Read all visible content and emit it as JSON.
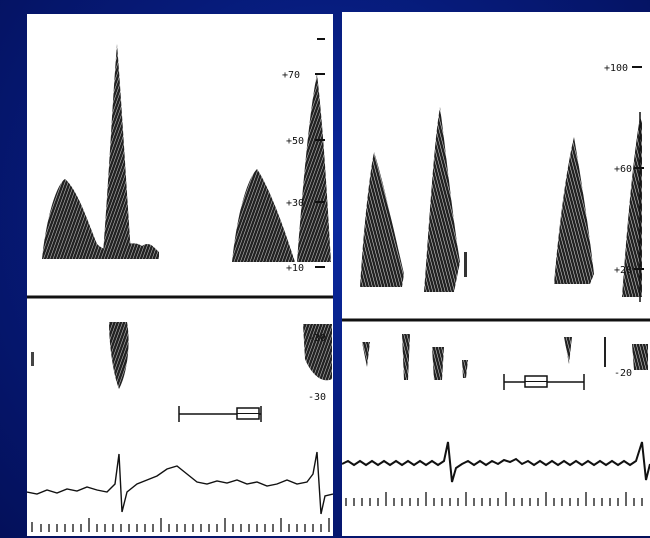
{
  "left_panel": {
    "upper_scale_labels": [
      "+70",
      "+50",
      "+30",
      "+10"
    ],
    "lower_scale_labels": [
      "-30",
      "-30"
    ]
  },
  "right_panel": {
    "upper_scale_labels": [
      "+100",
      "+60",
      "+20"
    ],
    "lower_scale_labels": [
      "-20"
    ]
  },
  "colors": {
    "background": "#061a78",
    "panel": "#ffffff",
    "trace": "#111111"
  },
  "icons": [
    "caliper-icon",
    "sample-volume-icon"
  ]
}
